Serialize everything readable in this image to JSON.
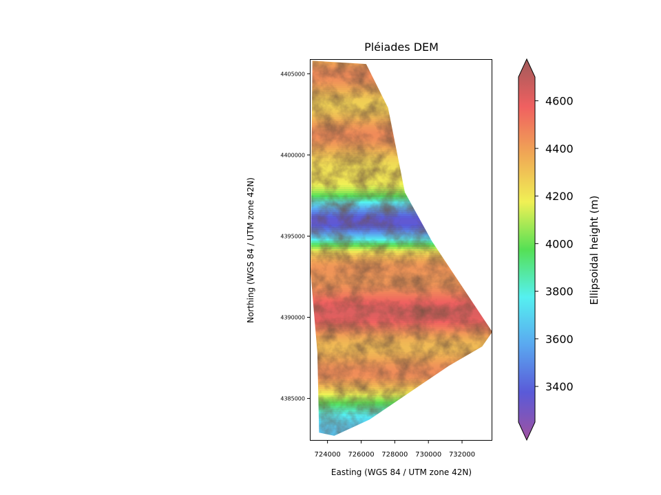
{
  "chart_data": {
    "type": "heatmap",
    "title": "Pléiades DEM",
    "xlabel": "Easting (WGS 84 / UTM zone 42N)",
    "ylabel": "Northing (WGS 84 / UTM zone 42N)",
    "xlim": [
      722950,
      733800
    ],
    "ylim": [
      4382400,
      4405900
    ],
    "x_ticks": [
      724000,
      726000,
      728000,
      730000,
      732000
    ],
    "x_tick_labels": [
      "724000",
      "726000",
      "728000",
      "730000",
      "732000"
    ],
    "y_ticks": [
      4385000,
      4390000,
      4395000,
      4400000,
      4405000
    ],
    "y_tick_labels": [
      "4385000",
      "4390000",
      "4395000",
      "4400000",
      "4405000"
    ],
    "footprint_polygon": [
      [
        723100,
        4405800
      ],
      [
        726300,
        4405600
      ],
      [
        727600,
        4402900
      ],
      [
        728600,
        4397700
      ],
      [
        730200,
        4394700
      ],
      [
        733800,
        4389100
      ],
      [
        733200,
        4388200
      ],
      [
        731200,
        4387000
      ],
      [
        726500,
        4383700
      ],
      [
        724400,
        4382700
      ],
      [
        723500,
        4382900
      ],
      [
        723400,
        4387800
      ],
      [
        723000,
        4392700
      ],
      [
        723050,
        4399600
      ]
    ],
    "colorbar": {
      "label": "Ellipsoidal height (m)",
      "range": [
        3250,
        4700
      ],
      "extend": "both",
      "ticks": [
        3400,
        3600,
        3800,
        4000,
        4200,
        4400,
        4600
      ],
      "tick_labels": [
        "3400",
        "3600",
        "3800",
        "4000",
        "4200",
        "4400",
        "4600"
      ],
      "colormap_stops": [
        "#a052a0",
        "#5a5ad8",
        "#5aa8f0",
        "#55f0f0",
        "#55e055",
        "#f0f055",
        "#f0a855",
        "#f06060",
        "#a05a5a"
      ]
    }
  }
}
